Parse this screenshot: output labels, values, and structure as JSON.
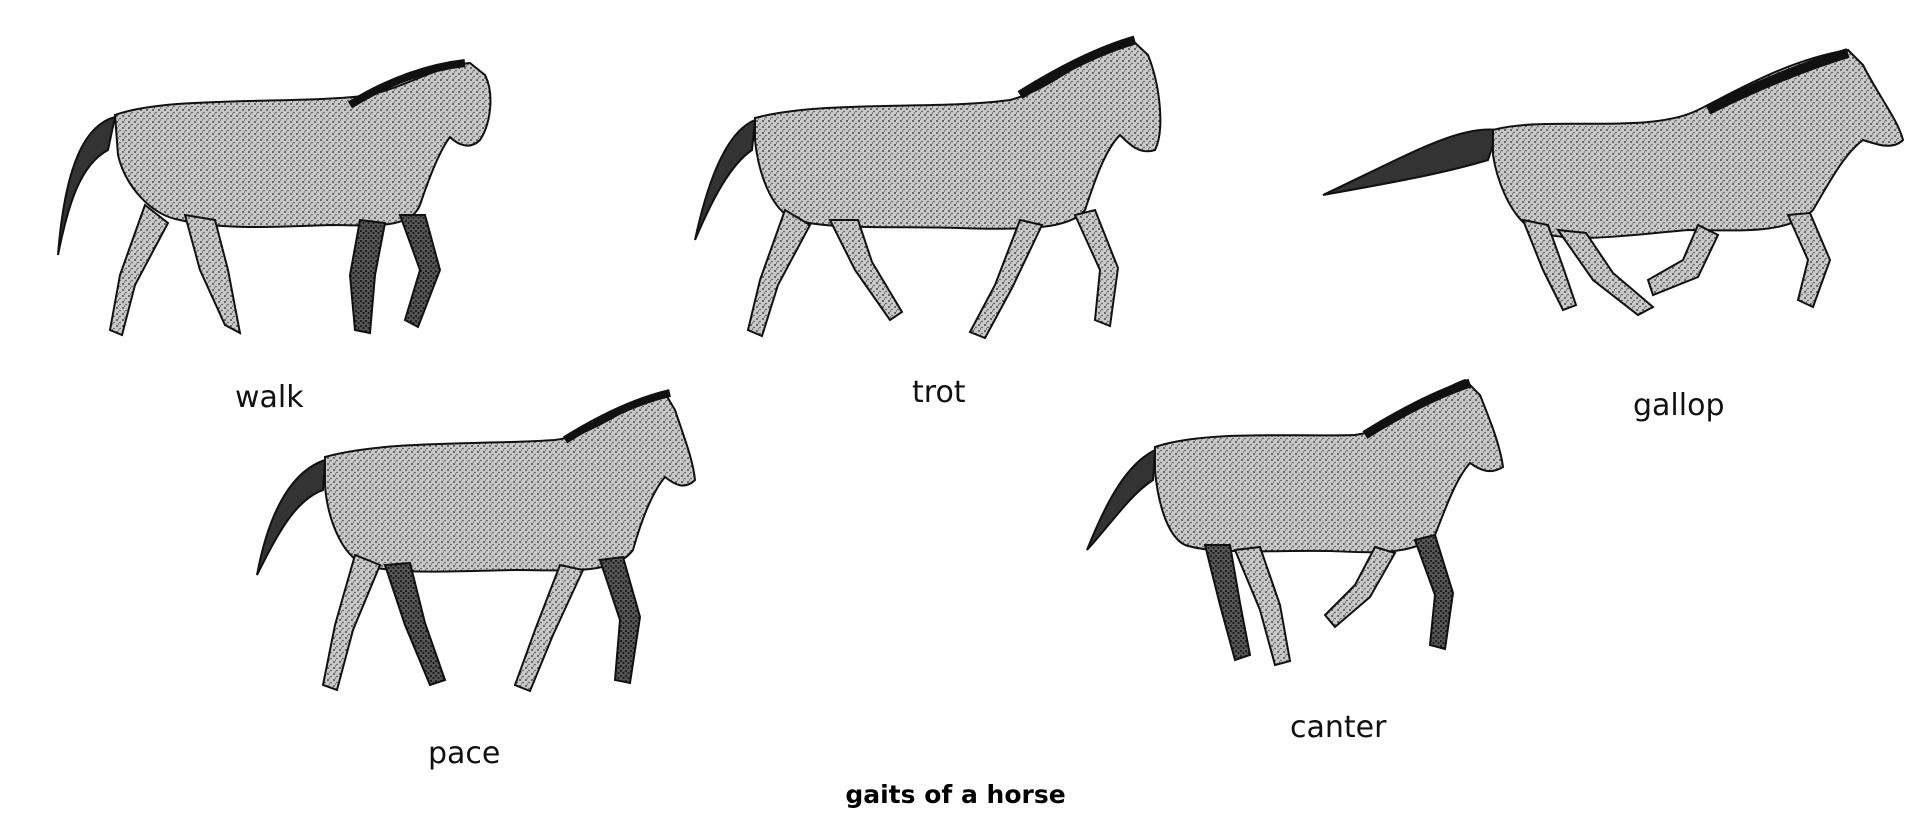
{
  "diagram": {
    "caption": "gaits of a horse",
    "gaits": [
      {
        "id": "walk",
        "label": "walk",
        "pose": "walk"
      },
      {
        "id": "trot",
        "label": "trot",
        "pose": "trot"
      },
      {
        "id": "gallop",
        "label": "gallop",
        "pose": "gallop"
      },
      {
        "id": "pace",
        "label": "pace",
        "pose": "pace"
      },
      {
        "id": "canter",
        "label": "canter",
        "pose": "canter"
      }
    ],
    "colors": {
      "ink": "#111111",
      "body_fill": "#bdbdbd",
      "dark_fill": "#3a3a3a",
      "background": "#ffffff"
    }
  }
}
